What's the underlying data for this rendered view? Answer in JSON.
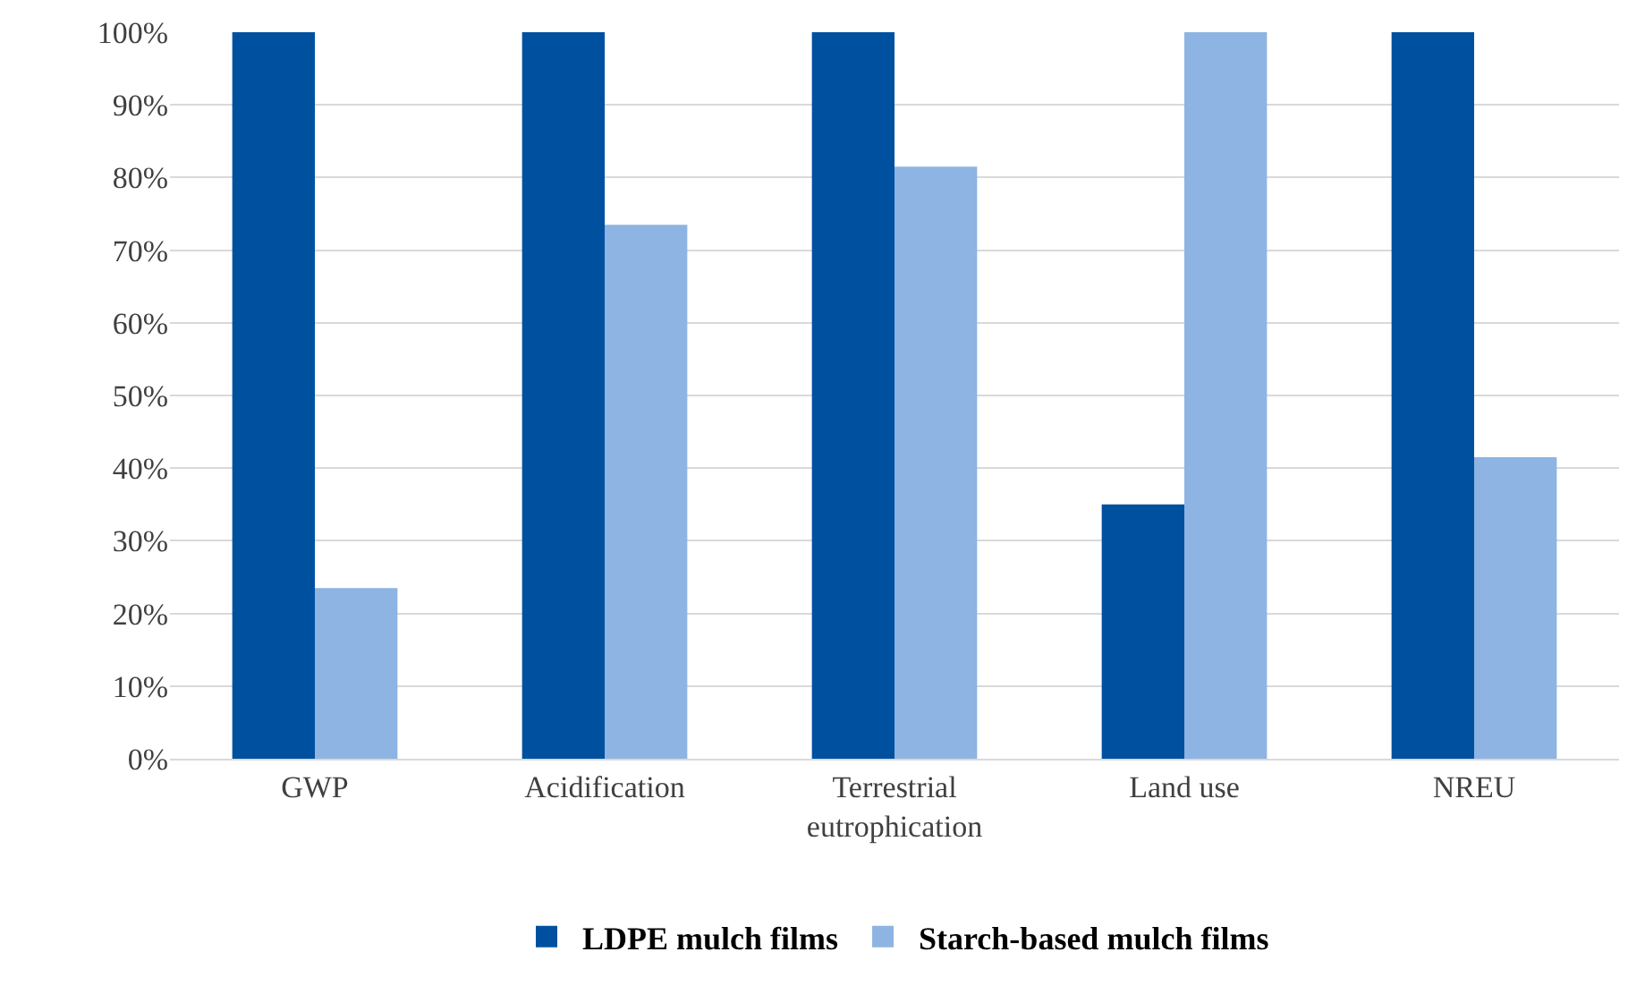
{
  "chart_data": {
    "type": "bar",
    "categories": [
      "GWP",
      "Acidification",
      "Terrestrial\neutrophication",
      "Land use",
      "NREU"
    ],
    "series": [
      {
        "name": "LDPE mulch films",
        "color": "#0050a0",
        "values": [
          100,
          100,
          100,
          35,
          100
        ]
      },
      {
        "name": "Starch-based mulch films",
        "color": "#8db4e2",
        "values": [
          23.5,
          73.5,
          81.5,
          100,
          41.5
        ]
      }
    ],
    "ylim": [
      0,
      100
    ],
    "yticks": [
      {
        "value": 0,
        "label": "0%"
      },
      {
        "value": 10,
        "label": "10%"
      },
      {
        "value": 20,
        "label": "20%"
      },
      {
        "value": 30,
        "label": "30%"
      },
      {
        "value": 40,
        "label": "40%"
      },
      {
        "value": 50,
        "label": "50%"
      },
      {
        "value": 60,
        "label": "60%"
      },
      {
        "value": 70,
        "label": "70%"
      },
      {
        "value": 80,
        "label": "80%"
      },
      {
        "value": 90,
        "label": "90%"
      },
      {
        "value": 100,
        "label": "100%"
      }
    ],
    "grid": "y",
    "legend": "bottom"
  }
}
